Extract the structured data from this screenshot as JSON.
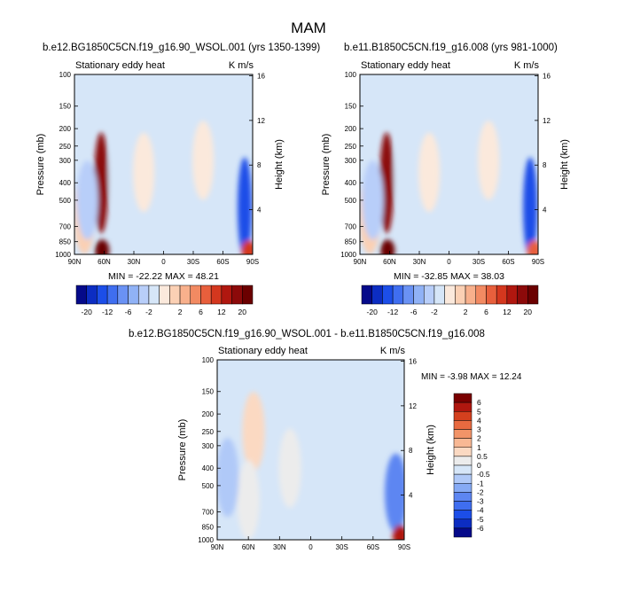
{
  "figure_title": "MAM",
  "colors": {
    "plot_background": "#d6e6f8",
    "frame": "#000000"
  },
  "chart_data": [
    {
      "type": "heatmap",
      "title": "b.e12.BG1850C5CN.f19_g16.90_WSOL.001 (yrs 1350-1399)",
      "left_string": "Stationary eddy heat",
      "right_string": "K m/s",
      "xlabel": "",
      "ylabel": "Pressure (mb)",
      "y2label": "Height (km)",
      "x_ticks": [
        "90N",
        "60N",
        "30N",
        "0",
        "30S",
        "60S",
        "90S"
      ],
      "y_ticks": [
        "100",
        "150",
        "200",
        "250",
        "300",
        "400",
        "500",
        "700",
        "850",
        "1000"
      ],
      "y2_ticks": [
        "16",
        "12",
        "8",
        "4"
      ],
      "xlim": [
        90,
        -90
      ],
      "ylim": [
        1000,
        100
      ],
      "stats": "MIN = -22.22  MAX = 48.21",
      "min": -22.22,
      "max": 48.21,
      "features": [
        {
          "lat": 63,
          "p": 400,
          "value": 20,
          "desc": "positive column at 60N"
        },
        {
          "lat": 62,
          "p": 950,
          "value": 30,
          "desc": "near-surface maximum 60N"
        },
        {
          "lat": 80,
          "p": 600,
          "value": 2,
          "desc": "weak positive high latitude"
        },
        {
          "lat": 20,
          "p": 350,
          "value": 1,
          "desc": "weak positive subtropics"
        },
        {
          "lat": 77,
          "p": 500,
          "value": -3,
          "desc": "negative pocket 75N"
        },
        {
          "lat": 44,
          "p": 350,
          "value": -1,
          "desc": "weak negative midlatitudes"
        },
        {
          "lat": -40,
          "p": 300,
          "value": 1,
          "desc": "weak positive south midlat"
        },
        {
          "lat": -82,
          "p": 550,
          "value": -12,
          "desc": "strong negative Antarctic"
        },
        {
          "lat": -86,
          "p": 960,
          "value": 12,
          "desc": "positive Antarctic surface"
        }
      ]
    },
    {
      "type": "heatmap",
      "title": "b.e11.B1850C5CN.f19_g16.008 (yrs 981-1000)",
      "left_string": "Stationary eddy heat",
      "right_string": "K m/s",
      "xlabel": "",
      "ylabel": "Pressure (mb)",
      "y2label": "Height (km)",
      "x_ticks": [
        "90N",
        "60N",
        "30N",
        "0",
        "30S",
        "60S",
        "90S"
      ],
      "y_ticks": [
        "100",
        "150",
        "200",
        "250",
        "300",
        "400",
        "500",
        "700",
        "850",
        "1000"
      ],
      "y2_ticks": [
        "16",
        "12",
        "8",
        "4"
      ],
      "xlim": [
        90,
        -90
      ],
      "ylim": [
        1000,
        100
      ],
      "stats": "MIN = -32.85  MAX = 38.03",
      "min": -32.85,
      "max": 38.03,
      "features": [
        {
          "lat": 63,
          "p": 400,
          "value": 20,
          "desc": "positive column at 60N"
        },
        {
          "lat": 62,
          "p": 950,
          "value": 28,
          "desc": "near-surface maximum 60N"
        },
        {
          "lat": 80,
          "p": 600,
          "value": 2,
          "desc": "weak positive high latitude"
        },
        {
          "lat": 20,
          "p": 350,
          "value": 1,
          "desc": "weak positive subtropics"
        },
        {
          "lat": 77,
          "p": 500,
          "value": -3,
          "desc": "negative pocket 75N"
        },
        {
          "lat": 44,
          "p": 350,
          "value": -1,
          "desc": "weak negative midlatitudes"
        },
        {
          "lat": -40,
          "p": 300,
          "value": 1,
          "desc": "weak positive south midlat"
        },
        {
          "lat": -82,
          "p": 550,
          "value": -14,
          "desc": "strong negative Antarctic"
        },
        {
          "lat": -86,
          "p": 960,
          "value": 8,
          "desc": "positive Antarctic surface"
        }
      ]
    },
    {
      "type": "heatmap",
      "title": "b.e12.BG1850C5CN.f19_g16.90_WSOL.001 - b.e11.B1850C5CN.f19_g16.008",
      "left_string": "Stationary eddy heat",
      "right_string": "K m/s",
      "xlabel": "",
      "ylabel": "Pressure (mb)",
      "y2label": "Height (km)",
      "x_ticks": [
        "90N",
        "60N",
        "30N",
        "0",
        "30S",
        "60S",
        "90S"
      ],
      "y_ticks": [
        "100",
        "150",
        "200",
        "250",
        "300",
        "400",
        "500",
        "700",
        "850",
        "1000"
      ],
      "y2_ticks": [
        "16",
        "12",
        "8",
        "4"
      ],
      "xlim": [
        90,
        -90
      ],
      "ylim": [
        1000,
        100
      ],
      "stats": "MIN = -3.98  MAX = 12.24",
      "min": -3.98,
      "max": 12.24,
      "features": [
        {
          "lat": 55,
          "p": 250,
          "value": 0.7,
          "desc": "weak positive upper 55N"
        },
        {
          "lat": 60,
          "p": 600,
          "value": 0.4,
          "desc": "weak positive 60N"
        },
        {
          "lat": 80,
          "p": 450,
          "value": -0.6,
          "desc": "weak negative high latitude"
        },
        {
          "lat": 20,
          "p": 400,
          "value": 0.4,
          "desc": "weak positive subtropics"
        },
        {
          "lat": -10,
          "p": 350,
          "value": -0.3,
          "desc": "weak negative tropics"
        },
        {
          "lat": -82,
          "p": 550,
          "value": -2.5,
          "desc": "negative Antarctic"
        },
        {
          "lat": -86,
          "p": 950,
          "value": 6,
          "desc": "positive Antarctic surface"
        }
      ]
    }
  ],
  "colorbars": [
    {
      "orientation": "horizontal",
      "labels": [
        "-20",
        "-12",
        "-6",
        "-2",
        "2",
        "6",
        "12",
        "20"
      ],
      "levels": [
        -20,
        -16,
        -12,
        -8,
        -6,
        -4,
        -2,
        -1,
        1,
        2,
        4,
        6,
        8,
        12,
        16,
        20
      ],
      "colors": [
        "#050a8a",
        "#0c2dc2",
        "#1c4ee8",
        "#3f6ef0",
        "#6a92f4",
        "#90b2f6",
        "#b8cef9",
        "#d6e6f8",
        "#fbe9dc",
        "#fbd0b4",
        "#f8b08c",
        "#f28a62",
        "#e85f3c",
        "#d4371e",
        "#b0170f",
        "#8c0a0a",
        "#6b0000"
      ]
    },
    {
      "orientation": "horizontal",
      "labels": [
        "-20",
        "-12",
        "-6",
        "-2",
        "2",
        "6",
        "12",
        "20"
      ],
      "levels": [
        -20,
        -16,
        -12,
        -8,
        -6,
        -4,
        -2,
        -1,
        1,
        2,
        4,
        6,
        8,
        12,
        16,
        20
      ],
      "colors": [
        "#050a8a",
        "#0c2dc2",
        "#1c4ee8",
        "#3f6ef0",
        "#6a92f4",
        "#90b2f6",
        "#b8cef9",
        "#d6e6f8",
        "#fbe9dc",
        "#fbd0b4",
        "#f8b08c",
        "#f28a62",
        "#e85f3c",
        "#d4371e",
        "#b0170f",
        "#8c0a0a",
        "#6b0000"
      ]
    },
    {
      "orientation": "vertical",
      "labels": [
        "6",
        "5",
        "4",
        "3",
        "2",
        "1",
        "0.5",
        "0",
        "-0.5",
        "-1",
        "-2",
        "-3",
        "-4",
        "-5",
        "-6"
      ],
      "levels": [
        -6,
        -5,
        -4,
        -3,
        -2,
        -1,
        -0.5,
        0,
        0.5,
        1,
        2,
        3,
        4,
        5,
        6
      ],
      "colors": [
        "#050a8a",
        "#0c2dc2",
        "#1c4ee8",
        "#3f6ef0",
        "#5d86f2",
        "#86aaf5",
        "#b0c9f8",
        "#d6e6f8",
        "#ececec",
        "#fbd9c2",
        "#f8b894",
        "#f29468",
        "#e86a40",
        "#d4401e",
        "#b0170f",
        "#7a0000"
      ]
    }
  ]
}
